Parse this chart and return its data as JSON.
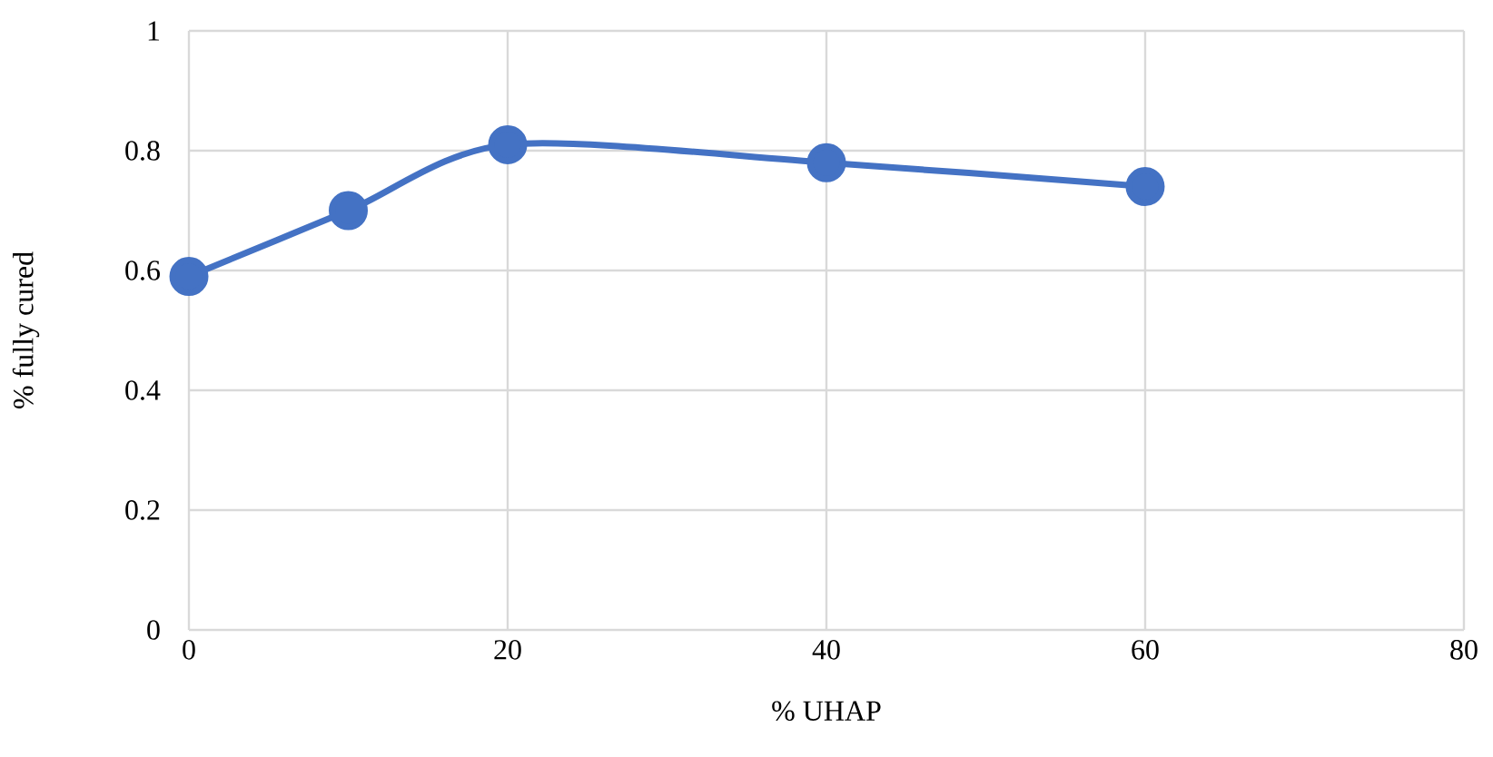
{
  "chart_data": {
    "type": "line",
    "xlabel": "% UHAP",
    "ylabel": "% fully cured",
    "x": [
      0,
      10,
      20,
      40,
      60
    ],
    "series": [
      {
        "color": "#4472c4",
        "values": [
          0.59,
          0.7,
          0.81,
          0.78,
          0.74
        ]
      }
    ],
    "xlim": [
      0,
      80
    ],
    "xticks": [
      0,
      20,
      40,
      60,
      80
    ],
    "ylim": [
      0,
      1
    ],
    "yticks": [
      0,
      0.2,
      0.4,
      0.6,
      0.8,
      1
    ],
    "grid": true,
    "marker": "circle",
    "line_style": "solid"
  }
}
